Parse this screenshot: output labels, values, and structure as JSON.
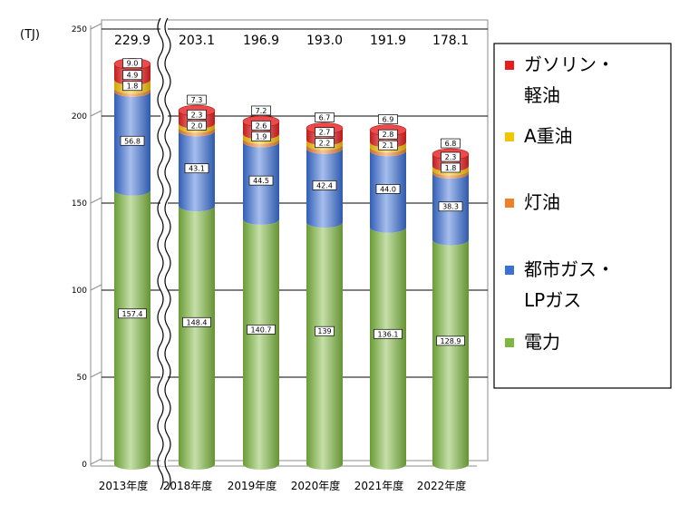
{
  "chart_data": {
    "type": "bar",
    "stacked": true,
    "title": "",
    "ylabel": "(TJ)",
    "xlabel": "",
    "ylim": [
      0,
      250
    ],
    "yticks": [
      0,
      50,
      100,
      150,
      200,
      250
    ],
    "grid": true,
    "legend_position": "right",
    "axis_break_after_first_category": true,
    "categories": [
      "2013年度",
      "2018年度",
      "2019年度",
      "2020年度",
      "2021年度",
      "2022年度"
    ],
    "totals": [
      "229.9",
      "203.1",
      "196.9",
      "193.0",
      "191.9",
      "178.1"
    ],
    "series": [
      {
        "name": "電力",
        "color": "#7db83e",
        "values": [
          157.4,
          148.4,
          140.7,
          139,
          136.1,
          128.9
        ],
        "labels": [
          "157.4",
          "148.4",
          "140.7",
          "139",
          "136.1",
          "128.9"
        ]
      },
      {
        "name": "都市ガス・LPガス",
        "color": "#3a6fd6",
        "values": [
          56.8,
          43.1,
          44.5,
          42.4,
          44.0,
          38.3
        ],
        "labels": [
          "56.8",
          "43.1",
          "44.5",
          "42.4",
          "44.0",
          "38.3"
        ]
      },
      {
        "name": "灯油",
        "color": "#f07f28",
        "values": [
          1.8,
          2.0,
          1.9,
          2.2,
          2.1,
          1.8
        ],
        "labels": [
          "1.8",
          "2.0",
          "1.9",
          "2.2",
          "2.1",
          "1.8"
        ]
      },
      {
        "name": "A重油",
        "color": "#f5c400",
        "values": [
          4.9,
          2.3,
          2.6,
          2.7,
          2.8,
          2.3
        ],
        "labels": [
          "4.9",
          "2.3",
          "2.6",
          "2.7",
          "2.8",
          "2.3"
        ]
      },
      {
        "name": "ガソリン・軽油",
        "color": "#e81e1e",
        "values": [
          9.0,
          7.3,
          7.2,
          6.7,
          6.9,
          6.8
        ],
        "labels": [
          "9.0",
          "7.3",
          "7.2",
          "6.7",
          "6.9",
          "6.8"
        ]
      }
    ],
    "legend": [
      {
        "text_lines": [
          "ガソリン・",
          "軽油"
        ],
        "color": "#e81e1e"
      },
      {
        "text_lines": [
          "A重油"
        ],
        "color": "#f5c400"
      },
      {
        "text_lines": [
          "灯油"
        ],
        "color": "#f07f28"
      },
      {
        "text_lines": [
          "都市ガス・",
          "LPガス"
        ],
        "color": "#3a6fd6"
      },
      {
        "text_lines": [
          "電力"
        ],
        "color": "#7db83e"
      }
    ]
  }
}
